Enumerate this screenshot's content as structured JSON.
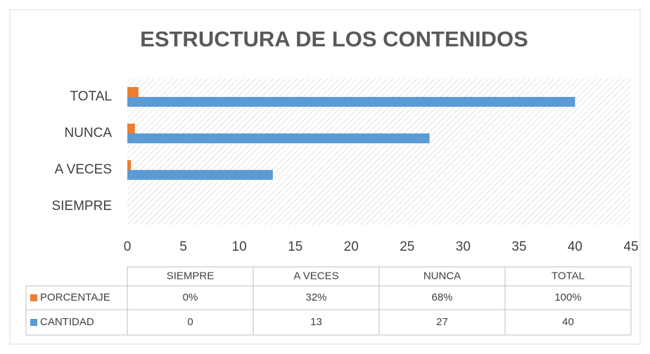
{
  "chart_data": {
    "type": "bar",
    "orientation": "horizontal",
    "title": "ESTRUCTURA DE LOS CONTENIDOS",
    "categories": [
      "SIEMPRE",
      "A VECES",
      "NUNCA",
      "TOTAL"
    ],
    "series": [
      {
        "name": "PORCENTAJE",
        "color": "#ed7d31",
        "values": [
          0,
          0.32,
          0.68,
          1
        ],
        "value_labels": [
          "0%",
          "32%",
          "68%",
          "100%"
        ]
      },
      {
        "name": "CANTIDAD",
        "color": "#5b9bd5",
        "values": [
          0,
          13,
          27,
          40
        ]
      }
    ],
    "xlim": [
      0,
      45
    ],
    "xticks": [
      0,
      5,
      10,
      15,
      20,
      25,
      30,
      35,
      40,
      45
    ],
    "grid": false,
    "data_table": true
  }
}
